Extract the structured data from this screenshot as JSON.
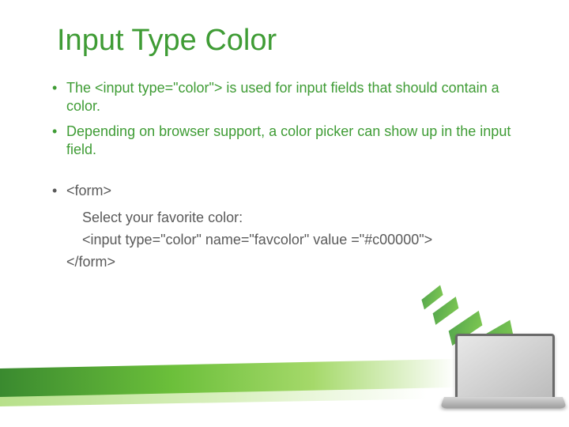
{
  "title": "Input Type Color",
  "colors": {
    "accent": "#3f9c35",
    "bodyText": "#5a5a5a",
    "background": "#ffffff"
  },
  "bullets": {
    "b1": "The <input type=\"color\"> is used for input fields that should contain a color.",
    "b2": "Depending on browser support, a color picker can show up in the input field.",
    "b3": "<form>",
    "line1": "Select your favorite color:",
    "line2": "<input type=\"color\" name=\"favcolor\"  value =\"#c00000\">",
    "line3": "</form>"
  }
}
